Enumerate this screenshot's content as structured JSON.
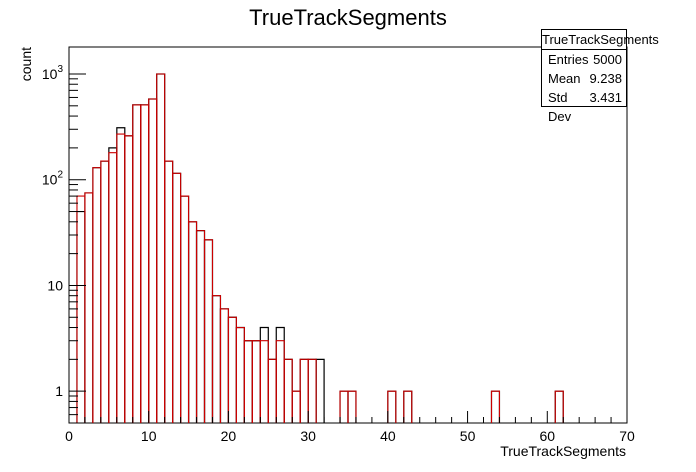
{
  "title": "TrueTrackSegments",
  "stats": {
    "name": "TrueTrackSegments",
    "rows": [
      {
        "label": "Entries",
        "value": "5000"
      },
      {
        "label": "Mean",
        "value": "9.238"
      },
      {
        "label": "Std Dev",
        "value": "3.431"
      }
    ]
  },
  "chart_data": {
    "type": "histogram",
    "title": "TrueTrackSegments",
    "xlabel": "TrueTrackSegments",
    "ylabel": "count",
    "xlim": [
      0,
      70
    ],
    "ylim": [
      0.5,
      1800
    ],
    "log_y": true,
    "x_ticks": [
      0,
      10,
      20,
      30,
      40,
      50,
      60,
      70
    ],
    "y_ticks": [
      {
        "value": 1,
        "label": "1"
      },
      {
        "value": 10,
        "label": "10"
      },
      {
        "value": 100,
        "label": "10²"
      },
      {
        "value": 1000,
        "label": "10³"
      }
    ],
    "bin_width": 1,
    "colors": {
      "reference": "#000000",
      "overlay": "#cc0000"
    },
    "series": [
      {
        "color": "#000000",
        "bins": [
          [
            0,
            0
          ],
          [
            1,
            50
          ],
          [
            2,
            75
          ],
          [
            3,
            130
          ],
          [
            4,
            150
          ],
          [
            5,
            200
          ],
          [
            6,
            310
          ],
          [
            7,
            260
          ],
          [
            8,
            510
          ],
          [
            9,
            510
          ],
          [
            10,
            580
          ],
          [
            11,
            1000
          ],
          [
            12,
            150
          ],
          [
            13,
            115
          ],
          [
            14,
            70
          ],
          [
            15,
            40
          ],
          [
            16,
            33
          ],
          [
            17,
            27
          ],
          [
            18,
            8
          ],
          [
            19,
            6
          ],
          [
            20,
            5
          ],
          [
            21,
            4
          ],
          [
            22,
            3
          ],
          [
            23,
            3
          ],
          [
            24,
            4
          ],
          [
            25,
            2
          ],
          [
            26,
            4
          ],
          [
            27,
            2
          ],
          [
            28,
            1
          ],
          [
            29,
            2
          ],
          [
            30,
            2
          ],
          [
            31,
            2
          ],
          [
            32,
            0
          ],
          [
            33,
            0
          ],
          [
            34,
            1
          ],
          [
            35,
            1
          ],
          [
            36,
            0
          ],
          [
            37,
            0
          ],
          [
            38,
            0
          ],
          [
            39,
            0
          ],
          [
            40,
            1
          ],
          [
            41,
            0
          ],
          [
            42,
            1
          ],
          [
            43,
            0
          ],
          [
            44,
            0
          ],
          [
            45,
            0
          ],
          [
            46,
            0
          ],
          [
            47,
            0
          ],
          [
            48,
            0
          ],
          [
            49,
            0
          ],
          [
            50,
            0
          ],
          [
            51,
            0
          ],
          [
            52,
            0
          ],
          [
            53,
            1
          ],
          [
            54,
            0
          ],
          [
            55,
            0
          ],
          [
            56,
            0
          ],
          [
            57,
            0
          ],
          [
            58,
            0
          ],
          [
            59,
            0
          ],
          [
            60,
            0
          ],
          [
            61,
            1
          ],
          [
            62,
            0
          ],
          [
            63,
            0
          ],
          [
            64,
            0
          ],
          [
            65,
            0
          ],
          [
            66,
            0
          ],
          [
            67,
            0
          ],
          [
            68,
            0
          ],
          [
            69,
            0
          ]
        ]
      },
      {
        "color": "#cc0000",
        "bins": [
          [
            0,
            0
          ],
          [
            1,
            70
          ],
          [
            2,
            75
          ],
          [
            3,
            130
          ],
          [
            4,
            150
          ],
          [
            5,
            180
          ],
          [
            6,
            270
          ],
          [
            7,
            260
          ],
          [
            8,
            510
          ],
          [
            9,
            510
          ],
          [
            10,
            580
          ],
          [
            11,
            1000
          ],
          [
            12,
            150
          ],
          [
            13,
            115
          ],
          [
            14,
            70
          ],
          [
            15,
            40
          ],
          [
            16,
            33
          ],
          [
            17,
            27
          ],
          [
            18,
            8
          ],
          [
            19,
            6
          ],
          [
            20,
            5
          ],
          [
            21,
            4
          ],
          [
            22,
            3
          ],
          [
            23,
            3
          ],
          [
            24,
            3
          ],
          [
            25,
            2
          ],
          [
            26,
            3
          ],
          [
            27,
            2
          ],
          [
            28,
            1
          ],
          [
            29,
            2
          ],
          [
            30,
            2
          ],
          [
            31,
            0
          ],
          [
            32,
            0
          ],
          [
            33,
            0
          ],
          [
            34,
            1
          ],
          [
            35,
            1
          ],
          [
            36,
            0
          ],
          [
            37,
            0
          ],
          [
            38,
            0
          ],
          [
            39,
            0
          ],
          [
            40,
            1
          ],
          [
            41,
            0
          ],
          [
            42,
            1
          ],
          [
            43,
            0
          ],
          [
            44,
            0
          ],
          [
            45,
            0
          ],
          [
            46,
            0
          ],
          [
            47,
            0
          ],
          [
            48,
            0
          ],
          [
            49,
            0
          ],
          [
            50,
            0
          ],
          [
            51,
            0
          ],
          [
            52,
            0
          ],
          [
            53,
            1
          ],
          [
            54,
            0
          ],
          [
            55,
            0
          ],
          [
            56,
            0
          ],
          [
            57,
            0
          ],
          [
            58,
            0
          ],
          [
            59,
            0
          ],
          [
            60,
            0
          ],
          [
            61,
            1
          ],
          [
            62,
            0
          ],
          [
            63,
            0
          ],
          [
            64,
            0
          ],
          [
            65,
            0
          ],
          [
            66,
            0
          ],
          [
            67,
            0
          ],
          [
            68,
            0
          ],
          [
            69,
            0
          ]
        ]
      }
    ]
  }
}
